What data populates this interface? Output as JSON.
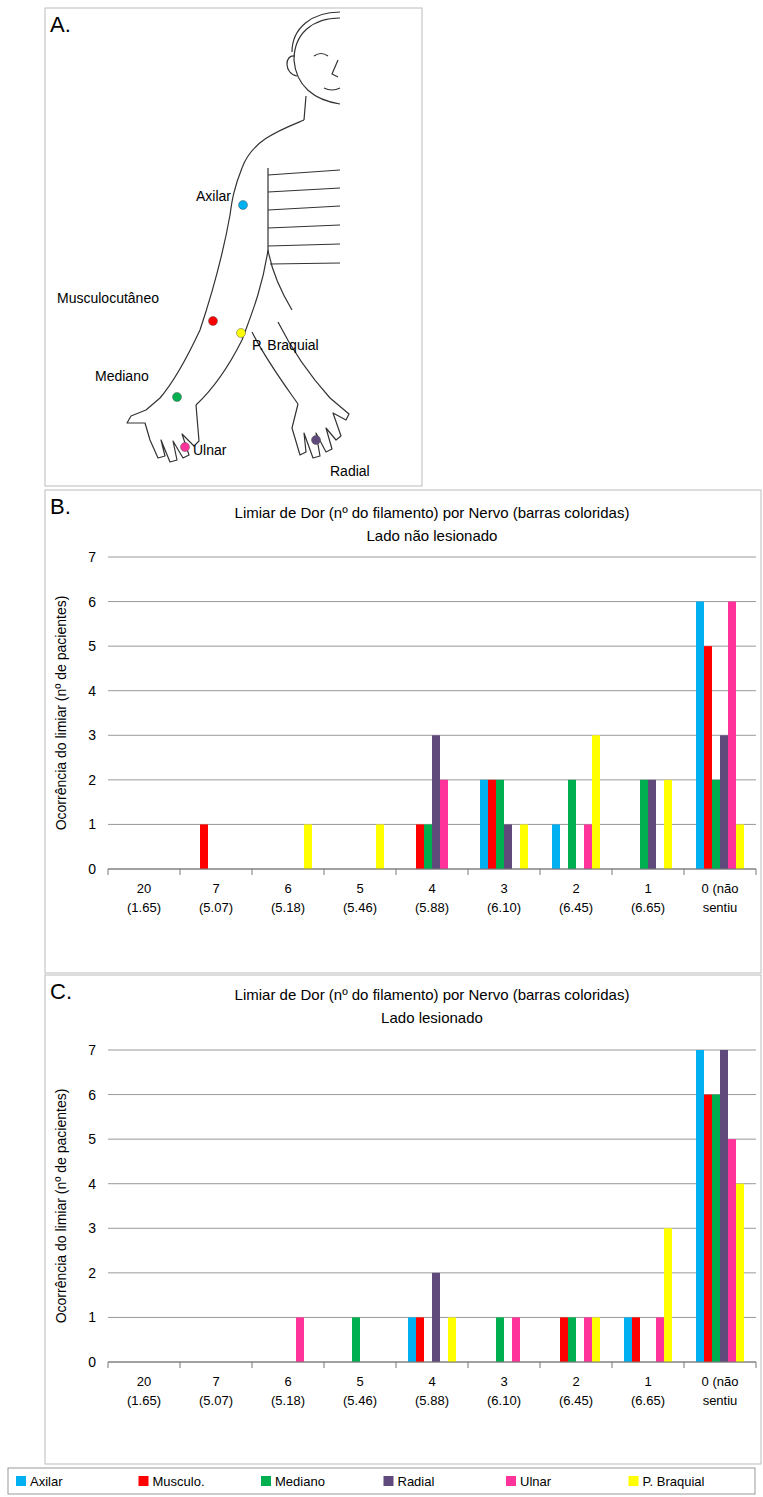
{
  "chart_data": [
    {
      "type": "bar",
      "panel_label": "B.",
      "title": "Limiar de Dor (nº do filamento) por Nervo (barras coloridas)",
      "subtitle": "Lado não lesionado",
      "y_label": "Ocorrência do limiar (nº de pacientes)",
      "categories": [
        "20 (1.65)",
        "7 (5.07)",
        "6 (5.18)",
        "5 (5.46)",
        "4 (5.88)",
        "3 (6.10)",
        "2 (6.45)",
        "1 (6.65)",
        "0 (não sentiu"
      ],
      "series": [
        {
          "color": "#00b0f0",
          "values": [
            0,
            0,
            0,
            0,
            0,
            2,
            1,
            0,
            6
          ]
        },
        {
          "color": "#ff0000",
          "values": [
            0,
            1,
            0,
            0,
            1,
            2,
            0,
            0,
            5
          ]
        },
        {
          "color": "#00b050",
          "values": [
            0,
            0,
            0,
            0,
            1,
            2,
            2,
            2,
            2
          ]
        },
        {
          "color": "#604a7b",
          "values": [
            0,
            0,
            0,
            0,
            3,
            1,
            0,
            2,
            3
          ]
        },
        {
          "color": "#ff3399",
          "values": [
            0,
            0,
            0,
            0,
            2,
            0,
            1,
            0,
            6
          ]
        },
        {
          "color": "#ffff00",
          "values": [
            0,
            0,
            1,
            1,
            0,
            1,
            3,
            2,
            1
          ]
        }
      ],
      "ylim": [
        0,
        7
      ],
      "yticks": [
        0,
        1,
        2,
        3,
        4,
        5,
        6,
        7
      ],
      "grid": true
    },
    {
      "type": "bar",
      "panel_label": "C.",
      "title": "Limiar de Dor (nº do filamento) por Nervo (barras coloridas)",
      "subtitle": "Lado lesionado",
      "y_label": "Ocorrência do limiar (nº de pacientes)",
      "categories": [
        "20 (1.65)",
        "7 (5.07)",
        "6 (5.18)",
        "5 (5.46)",
        "4 (5.88)",
        "3 (6.10)",
        "2 (6.45)",
        "1 (6.65)",
        "0 (não sentiu"
      ],
      "series": [
        {
          "name": "Axilar",
          "color": "#00b0f0",
          "values": [
            0,
            0,
            0,
            0,
            1,
            0,
            0,
            1,
            7
          ]
        },
        {
          "name": "Musculo.",
          "color": "#ff0000",
          "values": [
            0,
            0,
            0,
            0,
            1,
            0,
            1,
            1,
            6
          ]
        },
        {
          "name": "Mediano",
          "color": "#00b050",
          "values": [
            0,
            0,
            0,
            1,
            0,
            1,
            1,
            0,
            6
          ]
        },
        {
          "name": "Radial",
          "color": "#604a7b",
          "values": [
            0,
            0,
            0,
            0,
            2,
            0,
            0,
            0,
            7
          ]
        },
        {
          "name": "Ulnar",
          "color": "#ff3399",
          "values": [
            0,
            0,
            1,
            0,
            0,
            1,
            1,
            1,
            5
          ]
        },
        {
          "name": "P. Braquial",
          "color": "#ffff00",
          "values": [
            0,
            0,
            0,
            0,
            1,
            0,
            1,
            3,
            4
          ]
        }
      ],
      "ylim": [
        0,
        7
      ],
      "yticks": [
        0,
        1,
        2,
        3,
        4,
        5,
        6,
        7
      ],
      "grid": true,
      "legend": "bottom"
    }
  ],
  "diagram": {
    "label": "A.",
    "nerves": [
      {
        "name": "Axilar",
        "color": "#00b0f0"
      },
      {
        "name": "Musculocutâneo",
        "color": "#ff0000"
      },
      {
        "name": "Mediano",
        "color": "#00b050"
      },
      {
        "name": "Radial",
        "color": "#604a7b"
      },
      {
        "name": "Ulnar",
        "color": "#ff3399"
      },
      {
        "name": "P. Braquial",
        "color": "#ffff00"
      }
    ]
  }
}
